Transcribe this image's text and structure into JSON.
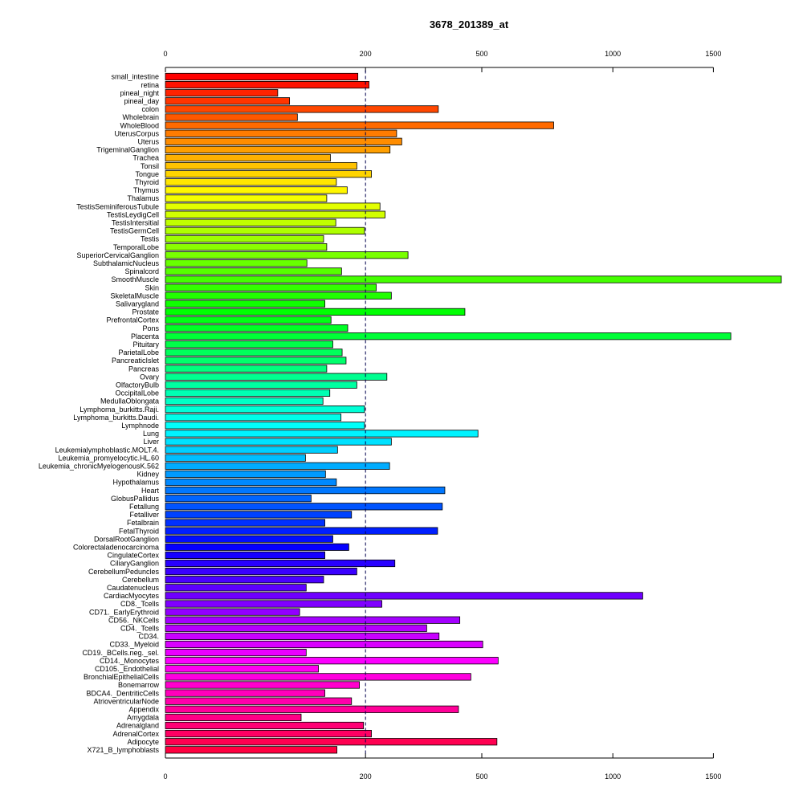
{
  "chart_data": {
    "type": "bar",
    "orientation": "horizontal",
    "title": "3678_201389_at",
    "xlabel": "",
    "ylabel": "",
    "xlim": [
      0,
      1890
    ],
    "x_ticks": [
      0,
      200,
      500,
      1000,
      1500
    ],
    "x_tick_labels": [
      "0",
      "200",
      "500",
      "1000",
      "1500"
    ],
    "reference_line": 200,
    "reference_line_style": "dashed",
    "reference_line_color": "#00004d",
    "grid": false,
    "legend": "none",
    "bar_border_color": "#000000",
    "color_scale": "rainbow",
    "categories": [
      "small_intestine",
      "retina",
      "pineal_night",
      "pineal_day",
      "colon",
      "Wholebrain",
      "WholeBlood",
      "UterusCorpus",
      "Uterus",
      "TrigeminalGanglion",
      "Trachea",
      "Tonsil",
      "Tongue",
      "Thyroid",
      "Thymus",
      "Thalamus",
      "TestisSeminiferousTubule",
      "TestisLeydigCell",
      "TestisIntersitial",
      "TestisGermCell",
      "Testis",
      "TemporalLobe",
      "SuperiorCervicalGanglion",
      "SubthalamicNucleus",
      "Spinalcord",
      "SmoothMuscle",
      "Skin",
      "SkeletalMuscle",
      "Salivarygland",
      "Prostate",
      "PrefrontalCortex",
      "Pons",
      "Placenta",
      "Pituitary",
      "ParietalLobe",
      "PancreaticIslet",
      "Pancreas",
      "Ovary",
      "OlfactoryBulb",
      "OccipitalLobe",
      "MedullaOblongata",
      "Lymphoma_burkitts.Raji.",
      "Lymphoma_burkitts.Daudi.",
      "Lymphnode",
      "Lung",
      "Liver",
      "Leukemialymphoblastic.MOLT.4.",
      "Leukemia_promyelocytic.HL.60",
      "Leukemia_chronicMyelogenousK.562",
      "Kidney",
      "Hypothalamus",
      "Heart",
      "GlobusPallidus",
      "Fetallung",
      "Fetalliver",
      "Fetalbrain",
      "FetalThyroid",
      "DorsalRootGanglion",
      "Colorectaladenocarcinoma",
      "CingulateCortex",
      "CiliaryGanglion",
      "CerebellumPeduncles",
      "Cerebellum",
      "Caudatenucleus",
      "CardiacMyocytes",
      "CD8._Tcells",
      "CD71._EarlyErythroid",
      "CD56._NKCells",
      "CD4._Tcells",
      "CD34.",
      "CD33._Myeloid",
      "CD19._BCells.neg._sel.",
      "CD14._Monocytes",
      "CD105._Endothelial",
      "BronchialEpithelialCells",
      "Bonemarrow",
      "BDCA4._DentriticCells",
      "AtrioventricularNode",
      "Appendix",
      "Amygdala",
      "Adrenalgland",
      "AdrenalCortex",
      "Adipocyte",
      "X721_B_lymphoblasts"
    ],
    "values": [
      185,
      207,
      63,
      77,
      372,
      87,
      753,
      267,
      279,
      252,
      136,
      183,
      212,
      146,
      165,
      130,
      230,
      241,
      145,
      198,
      125,
      130,
      294,
      100,
      155,
      1895,
      222,
      255,
      127,
      448,
      137,
      166,
      1597,
      140,
      156,
      163,
      130,
      245,
      183,
      135,
      124,
      198,
      154,
      198,
      488,
      255,
      148,
      98,
      251,
      128,
      146,
      390,
      106,
      383,
      173,
      127,
      370,
      140,
      168,
      127,
      263,
      183,
      125,
      99,
      1138,
      234,
      90,
      433,
      341,
      374,
      503,
      99,
      553,
      117,
      466,
      188,
      127,
      173,
      429,
      92,
      196,
      212,
      549,
      147
    ]
  }
}
